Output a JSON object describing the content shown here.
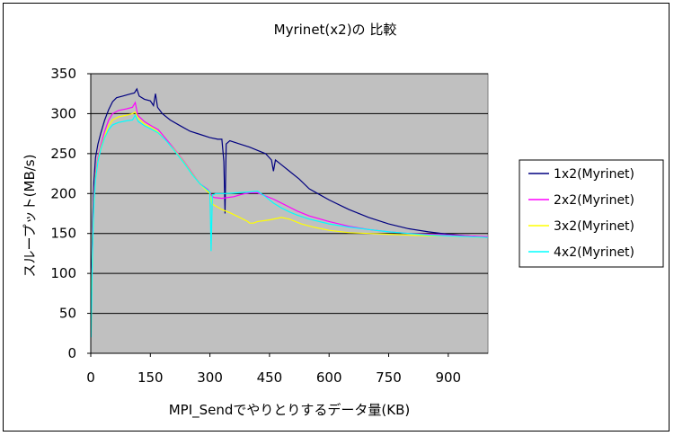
{
  "chart_data": {
    "type": "line",
    "title": "Myrinet(x2)の 比較",
    "xlabel": "MPI_Sendでやりとりするデータ量(KB)",
    "ylabel": "スループット(MB/s)",
    "xlim": [
      0,
      1000
    ],
    "ylim": [
      0,
      350
    ],
    "xticks": [
      0,
      150,
      300,
      450,
      600,
      750,
      900
    ],
    "yticks": [
      0,
      50,
      100,
      150,
      200,
      250,
      300,
      350
    ],
    "grid": "horizontal",
    "legend_position": "right",
    "plot_background": "#c0c0c0",
    "series": [
      {
        "name": "1x2(Myrinet)",
        "color": "#000080",
        "points": [
          [
            1,
            60
          ],
          [
            3,
            120
          ],
          [
            5,
            170
          ],
          [
            8,
            215
          ],
          [
            12,
            245
          ],
          [
            18,
            262
          ],
          [
            25,
            275
          ],
          [
            35,
            292
          ],
          [
            45,
            305
          ],
          [
            55,
            315
          ],
          [
            65,
            320
          ],
          [
            80,
            322
          ],
          [
            95,
            324
          ],
          [
            110,
            326
          ],
          [
            116,
            331
          ],
          [
            122,
            322
          ],
          [
            135,
            318
          ],
          [
            150,
            316
          ],
          [
            158,
            310
          ],
          [
            163,
            325
          ],
          [
            168,
            308
          ],
          [
            180,
            300
          ],
          [
            200,
            292
          ],
          [
            225,
            285
          ],
          [
            250,
            278
          ],
          [
            275,
            274
          ],
          [
            300,
            270
          ],
          [
            320,
            268
          ],
          [
            330,
            268
          ],
          [
            335,
            240
          ],
          [
            338,
            175
          ],
          [
            341,
            262
          ],
          [
            350,
            266
          ],
          [
            375,
            262
          ],
          [
            400,
            258
          ],
          [
            420,
            254
          ],
          [
            440,
            250
          ],
          [
            455,
            242
          ],
          [
            460,
            228
          ],
          [
            465,
            242
          ],
          [
            480,
            236
          ],
          [
            500,
            228
          ],
          [
            525,
            218
          ],
          [
            550,
            206
          ],
          [
            575,
            199
          ],
          [
            600,
            192
          ],
          [
            650,
            180
          ],
          [
            700,
            170
          ],
          [
            750,
            162
          ],
          [
            800,
            156
          ],
          [
            850,
            152
          ],
          [
            900,
            149
          ],
          [
            950,
            147
          ],
          [
            1000,
            145
          ]
        ]
      },
      {
        "name": "2x2(Myrinet)",
        "color": "#ff00ff",
        "points": [
          [
            1,
            30
          ],
          [
            3,
            100
          ],
          [
            5,
            150
          ],
          [
            8,
            195
          ],
          [
            12,
            225
          ],
          [
            18,
            245
          ],
          [
            25,
            260
          ],
          [
            35,
            278
          ],
          [
            45,
            292
          ],
          [
            55,
            300
          ],
          [
            70,
            304
          ],
          [
            90,
            306
          ],
          [
            105,
            308
          ],
          [
            112,
            314
          ],
          [
            118,
            298
          ],
          [
            135,
            290
          ],
          [
            155,
            284
          ],
          [
            170,
            280
          ],
          [
            190,
            268
          ],
          [
            210,
            256
          ],
          [
            235,
            240
          ],
          [
            255,
            226
          ],
          [
            275,
            212
          ],
          [
            295,
            205
          ],
          [
            305,
            197
          ],
          [
            310,
            195
          ],
          [
            330,
            194
          ],
          [
            360,
            196
          ],
          [
            380,
            199
          ],
          [
            400,
            201
          ],
          [
            420,
            201
          ],
          [
            440,
            197
          ],
          [
            460,
            193
          ],
          [
            480,
            188
          ],
          [
            500,
            183
          ],
          [
            520,
            178
          ],
          [
            550,
            172
          ],
          [
            600,
            165
          ],
          [
            650,
            159
          ],
          [
            700,
            155
          ],
          [
            750,
            152
          ],
          [
            800,
            150
          ],
          [
            850,
            149
          ],
          [
            900,
            148
          ],
          [
            950,
            147
          ],
          [
            1000,
            146
          ]
        ]
      },
      {
        "name": "3x2(Myrinet)",
        "color": "#ffff00",
        "points": [
          [
            1,
            25
          ],
          [
            3,
            95
          ],
          [
            5,
            145
          ],
          [
            8,
            190
          ],
          [
            12,
            222
          ],
          [
            18,
            242
          ],
          [
            25,
            257
          ],
          [
            35,
            272
          ],
          [
            45,
            285
          ],
          [
            55,
            292
          ],
          [
            70,
            296
          ],
          [
            90,
            298
          ],
          [
            105,
            300
          ],
          [
            112,
            302
          ],
          [
            120,
            294
          ],
          [
            135,
            287
          ],
          [
            155,
            282
          ],
          [
            170,
            277
          ],
          [
            190,
            266
          ],
          [
            210,
            255
          ],
          [
            235,
            239
          ],
          [
            255,
            225
          ],
          [
            275,
            212
          ],
          [
            295,
            202
          ],
          [
            300,
            200
          ],
          [
            305,
            187
          ],
          [
            330,
            180
          ],
          [
            350,
            176
          ],
          [
            375,
            170
          ],
          [
            395,
            165
          ],
          [
            400,
            163
          ],
          [
            410,
            163
          ],
          [
            420,
            165
          ],
          [
            450,
            167
          ],
          [
            480,
            170
          ],
          [
            500,
            168
          ],
          [
            530,
            162
          ],
          [
            560,
            158
          ],
          [
            600,
            154
          ],
          [
            650,
            151
          ],
          [
            700,
            150
          ],
          [
            750,
            149
          ],
          [
            800,
            148
          ],
          [
            850,
            147
          ],
          [
            900,
            147
          ],
          [
            950,
            146
          ],
          [
            1000,
            145
          ]
        ]
      },
      {
        "name": "4x2(Myrinet)",
        "color": "#00ffff",
        "points": [
          [
            1,
            20
          ],
          [
            3,
            90
          ],
          [
            5,
            140
          ],
          [
            8,
            185
          ],
          [
            12,
            218
          ],
          [
            18,
            240
          ],
          [
            25,
            255
          ],
          [
            35,
            270
          ],
          [
            45,
            280
          ],
          [
            55,
            286
          ],
          [
            70,
            289
          ],
          [
            90,
            291
          ],
          [
            105,
            292
          ],
          [
            112,
            298
          ],
          [
            120,
            290
          ],
          [
            135,
            285
          ],
          [
            155,
            280
          ],
          [
            170,
            276
          ],
          [
            190,
            266
          ],
          [
            210,
            254
          ],
          [
            235,
            238
          ],
          [
            255,
            224
          ],
          [
            275,
            212
          ],
          [
            295,
            204
          ],
          [
            300,
            202
          ],
          [
            303,
            128
          ],
          [
            306,
            198
          ],
          [
            315,
            200
          ],
          [
            340,
            200
          ],
          [
            370,
            201
          ],
          [
            400,
            202
          ],
          [
            420,
            203
          ],
          [
            440,
            196
          ],
          [
            460,
            188
          ],
          [
            480,
            182
          ],
          [
            500,
            177
          ],
          [
            520,
            173
          ],
          [
            550,
            168
          ],
          [
            600,
            162
          ],
          [
            650,
            158
          ],
          [
            700,
            155
          ],
          [
            750,
            152
          ],
          [
            800,
            150
          ],
          [
            850,
            148
          ],
          [
            900,
            147
          ],
          [
            950,
            146
          ],
          [
            1000,
            145
          ]
        ]
      }
    ]
  }
}
